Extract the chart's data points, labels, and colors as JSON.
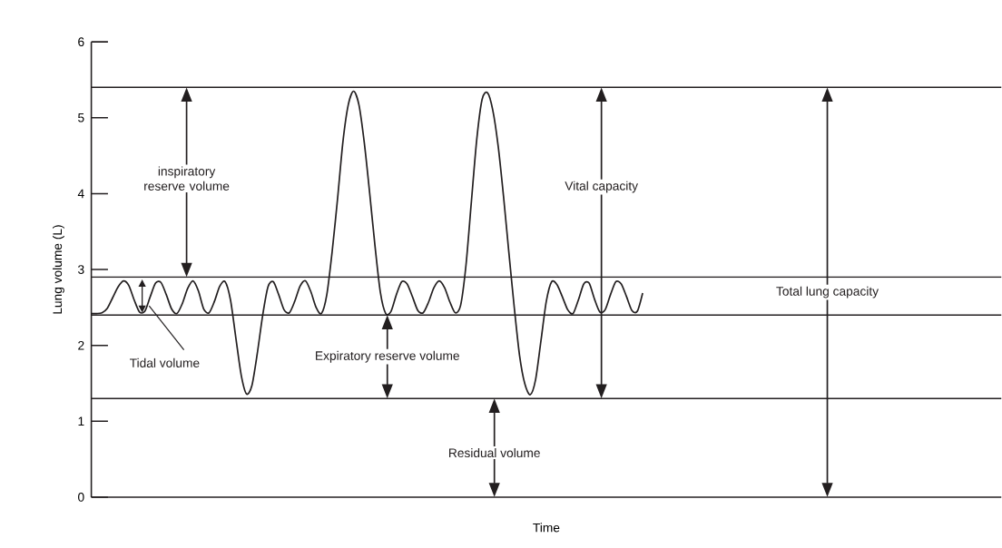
{
  "chart_data": {
    "type": "line",
    "xlabel": "Time",
    "ylabel": "Lung volume (L)",
    "categories": [
      null,
      null,
      null,
      null,
      null,
      null,
      null,
      null,
      null,
      null,
      null,
      null,
      null,
      null,
      null,
      null,
      null,
      null,
      null,
      null,
      null,
      null,
      null,
      null,
      null,
      null,
      null,
      null,
      null,
      null,
      null,
      null,
      null,
      null,
      null,
      null,
      null,
      null,
      null,
      null,
      null,
      null,
      null,
      null,
      null,
      null,
      null,
      null,
      null,
      null,
      null,
      null,
      null,
      null,
      null,
      null,
      null,
      null,
      null,
      null,
      null,
      null,
      null,
      null,
      null,
      null,
      null,
      null,
      null,
      null,
      null,
      null,
      null,
      null,
      null,
      null,
      null,
      null,
      null,
      null,
      null,
      null,
      null,
      null,
      null,
      null,
      null,
      null,
      null,
      null,
      null,
      null,
      null,
      null,
      null,
      null,
      null,
      null,
      null,
      null,
      null,
      null,
      null,
      null,
      null,
      null,
      null,
      null,
      null,
      null,
      null,
      null,
      null,
      null,
      null,
      null,
      null,
      null,
      null,
      null,
      null,
      null,
      null,
      null,
      null,
      null,
      null,
      null,
      null,
      null,
      null,
      null,
      null,
      null,
      null,
      null,
      null,
      null,
      null,
      null,
      null,
      null,
      null,
      null,
      null,
      null,
      null,
      null,
      null,
      null,
      null,
      null,
      null,
      null,
      null,
      null,
      null,
      null,
      null,
      null,
      null,
      null,
      null,
      null,
      null,
      null,
      null,
      null,
      null,
      null,
      null
    ],
    "series": [
      {
        "color": "#231f20",
        "values": [
          2.42,
          2.42,
          2.43,
          2.49,
          2.63,
          2.77,
          2.85,
          2.79,
          2.6,
          2.44,
          2.45,
          2.64,
          2.82,
          2.83,
          2.67,
          2.48,
          2.42,
          2.55,
          2.75,
          2.85,
          2.72,
          2.48,
          2.43,
          2.58,
          2.78,
          2.84,
          2.6,
          2.1,
          1.61,
          1.36,
          1.47,
          1.89,
          2.39,
          2.77,
          2.84,
          2.67,
          2.47,
          2.43,
          2.58,
          2.78,
          2.85,
          2.71,
          2.5,
          2.42,
          2.67,
          3.24,
          3.93,
          4.68,
          5.17,
          5.35,
          5.17,
          4.67,
          4.01,
          3.31,
          2.7,
          2.42,
          2.45,
          2.67,
          2.84,
          2.81,
          2.64,
          2.46,
          2.43,
          2.57,
          2.76,
          2.85,
          2.76,
          2.57,
          2.43,
          2.53,
          3.06,
          3.89,
          4.71,
          5.24,
          5.33,
          5.1,
          4.63,
          3.97,
          3.23,
          2.51,
          1.87,
          1.49,
          1.35,
          1.55,
          2.06,
          2.58,
          2.84,
          2.8,
          2.64,
          2.47,
          2.42,
          2.6,
          2.81,
          2.82,
          2.61,
          2.44,
          2.47,
          2.67,
          2.84,
          2.81,
          2.64,
          2.46,
          2.45,
          2.69,
          null,
          null,
          null,
          null,
          null,
          null,
          null,
          null,
          null,
          null,
          null,
          null,
          null,
          null,
          null,
          null,
          null,
          null,
          null,
          null,
          null,
          null,
          null,
          null,
          null,
          null,
          null,
          null,
          null,
          null,
          null,
          null,
          null,
          null,
          null,
          null,
          null,
          null,
          null,
          null,
          null,
          null,
          null,
          null,
          null,
          null,
          null,
          null,
          null,
          null,
          null,
          null,
          null,
          null,
          null,
          null,
          null,
          null,
          null,
          null,
          null,
          null,
          null,
          null,
          null,
          null,
          null
        ]
      }
    ],
    "ylim": [
      0,
      6
    ],
    "yticks": [
      0,
      1,
      2,
      3,
      4,
      5,
      6
    ],
    "ref_lines": [
      {
        "axis": "y",
        "value": 5.4,
        "color": "#231f20"
      },
      {
        "axis": "y",
        "value": 2.9,
        "color": "#231f20"
      },
      {
        "axis": "y",
        "value": 2.4,
        "color": "#231f20"
      },
      {
        "axis": "y",
        "value": 1.3,
        "color": "#231f20"
      }
    ],
    "annotations": [
      "inspiratory reserve volume",
      "Tidal volume",
      "Expiratory reserve volume",
      "Residual volume",
      "Vital capacity",
      "Total lung capacity"
    ]
  }
}
